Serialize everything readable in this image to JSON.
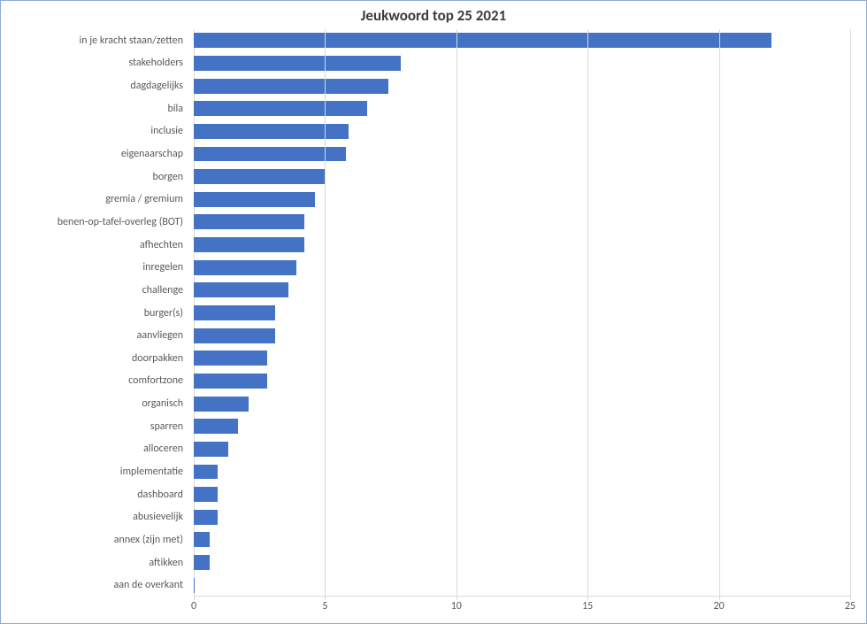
{
  "chart": {
    "type": "bar-horizontal",
    "title": "Jeukwoord top 25 2021",
    "title_fontsize": 17,
    "title_color": "#3b3b3b",
    "background_color": "#ffffff",
    "border_color": "#8faadc",
    "bar_color": "#4472c4",
    "grid_color": "#d9d9d9",
    "label_color": "#595959",
    "label_fontsize": 12,
    "tick_fontsize": 12,
    "bar_width_ratio": 0.66,
    "xlim": [
      0,
      25
    ],
    "xtick_step": 5,
    "xticks": [
      0,
      5,
      10,
      15,
      20,
      25
    ],
    "categories": [
      "in je kracht staan/zetten",
      "stakeholders",
      "dagdagelijks",
      "bila",
      "inclusie",
      "eigenaarschap",
      "borgen",
      "gremia / gremium",
      "benen-op-tafel-overleg (BOT)",
      "afhechten",
      "inregelen",
      "challenge",
      "burger(s)",
      "aanvliegen",
      "doorpakken",
      "comfortzone",
      "organisch",
      "sparren",
      "alloceren",
      "implementatie",
      "dashboard",
      "abusievelijk",
      "annex (zijn met)",
      "aftikken",
      "aan de overkant"
    ],
    "values": [
      22.0,
      7.9,
      7.4,
      6.6,
      5.9,
      5.8,
      5.0,
      4.6,
      4.2,
      4.2,
      3.9,
      3.6,
      3.1,
      3.1,
      2.8,
      2.8,
      2.1,
      1.7,
      1.3,
      0.9,
      0.9,
      0.9,
      0.6,
      0.6,
      0.05
    ]
  }
}
